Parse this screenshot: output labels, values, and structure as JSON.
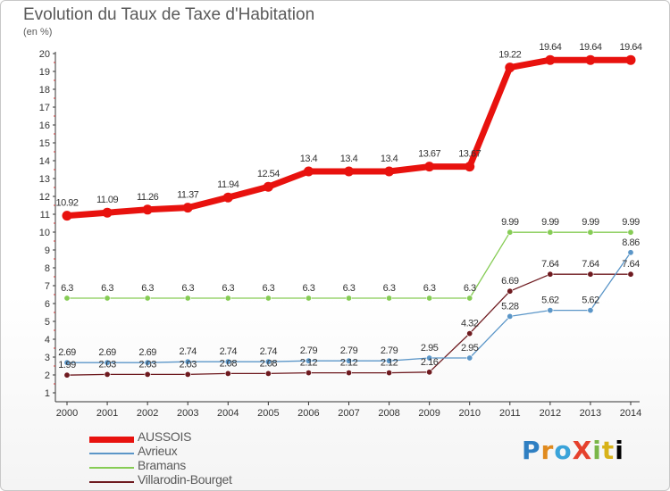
{
  "title": "Evolution du Taux de Taxe d'Habitation",
  "unit_label": "(en %)",
  "brand": "ProXiti",
  "chart_data": {
    "type": "line",
    "x": [
      "2000",
      "2001",
      "2002",
      "2003",
      "2004",
      "2005",
      "2006",
      "2007",
      "2008",
      "2009",
      "2010",
      "2011",
      "2012",
      "2013",
      "2014"
    ],
    "ylim": [
      1,
      20
    ],
    "y_ticks": [
      "1",
      "2",
      "3",
      "4",
      "5",
      "6",
      "7",
      "8",
      "9",
      "10",
      "11",
      "12",
      "13",
      "14",
      "15",
      "16",
      "17",
      "18",
      "19",
      "20"
    ],
    "grid": false,
    "legend_position": "bottom-left",
    "series": [
      {
        "name": "AUSSOIS",
        "color": "#e8120e",
        "emphasis": true,
        "values": [
          10.92,
          11.09,
          11.26,
          11.37,
          11.94,
          12.54,
          13.4,
          13.4,
          13.4,
          13.67,
          13.67,
          19.22,
          19.64,
          19.64,
          19.64
        ],
        "labels": [
          "10.92",
          "11.09",
          "11.26",
          "11.37",
          "11.94",
          "12.54",
          "13.4",
          "13.4",
          "13.4",
          "13.67",
          "13.67",
          "19.22",
          "19.64",
          "19.64",
          "19.64"
        ]
      },
      {
        "name": "Avrieux",
        "color": "#5b96c8",
        "values": [
          2.69,
          2.69,
          2.69,
          2.74,
          2.74,
          2.74,
          2.79,
          2.79,
          2.79,
          2.95,
          2.95,
          5.28,
          5.62,
          5.62,
          8.86
        ],
        "labels": [
          "2.69",
          "2.69",
          "2.69",
          "2.74",
          "2.74",
          "2.74",
          "2.79",
          "2.79",
          "2.79",
          "2.95",
          "2.95",
          "5.28",
          "5.62",
          "5.62",
          "8.86"
        ]
      },
      {
        "name": "Bramans",
        "color": "#86cc55",
        "values": [
          6.3,
          6.3,
          6.3,
          6.3,
          6.3,
          6.3,
          6.3,
          6.3,
          6.3,
          6.3,
          6.3,
          9.99,
          9.99,
          9.99,
          9.99
        ],
        "labels": [
          "6.3",
          "6.3",
          "6.3",
          "6.3",
          "6.3",
          "6.3",
          "6.3",
          "6.3",
          "6.3",
          "6.3",
          "6.3",
          "9.99",
          "9.99",
          "9.99",
          "9.99"
        ]
      },
      {
        "name": "Villarodin-Bourget",
        "color": "#6e1a1f",
        "values": [
          1.99,
          2.03,
          2.03,
          2.03,
          2.08,
          2.08,
          2.12,
          2.12,
          2.12,
          2.16,
          4.32,
          6.69,
          7.64,
          7.64,
          7.64
        ],
        "labels": [
          "1.99",
          "2.03",
          "2.03",
          "2.03",
          "2.08",
          "2.08",
          "2.12",
          "2.12",
          "2.12",
          "2.16",
          "4.32",
          "6.69",
          "7.64",
          "7.64",
          "7.64"
        ]
      }
    ]
  }
}
